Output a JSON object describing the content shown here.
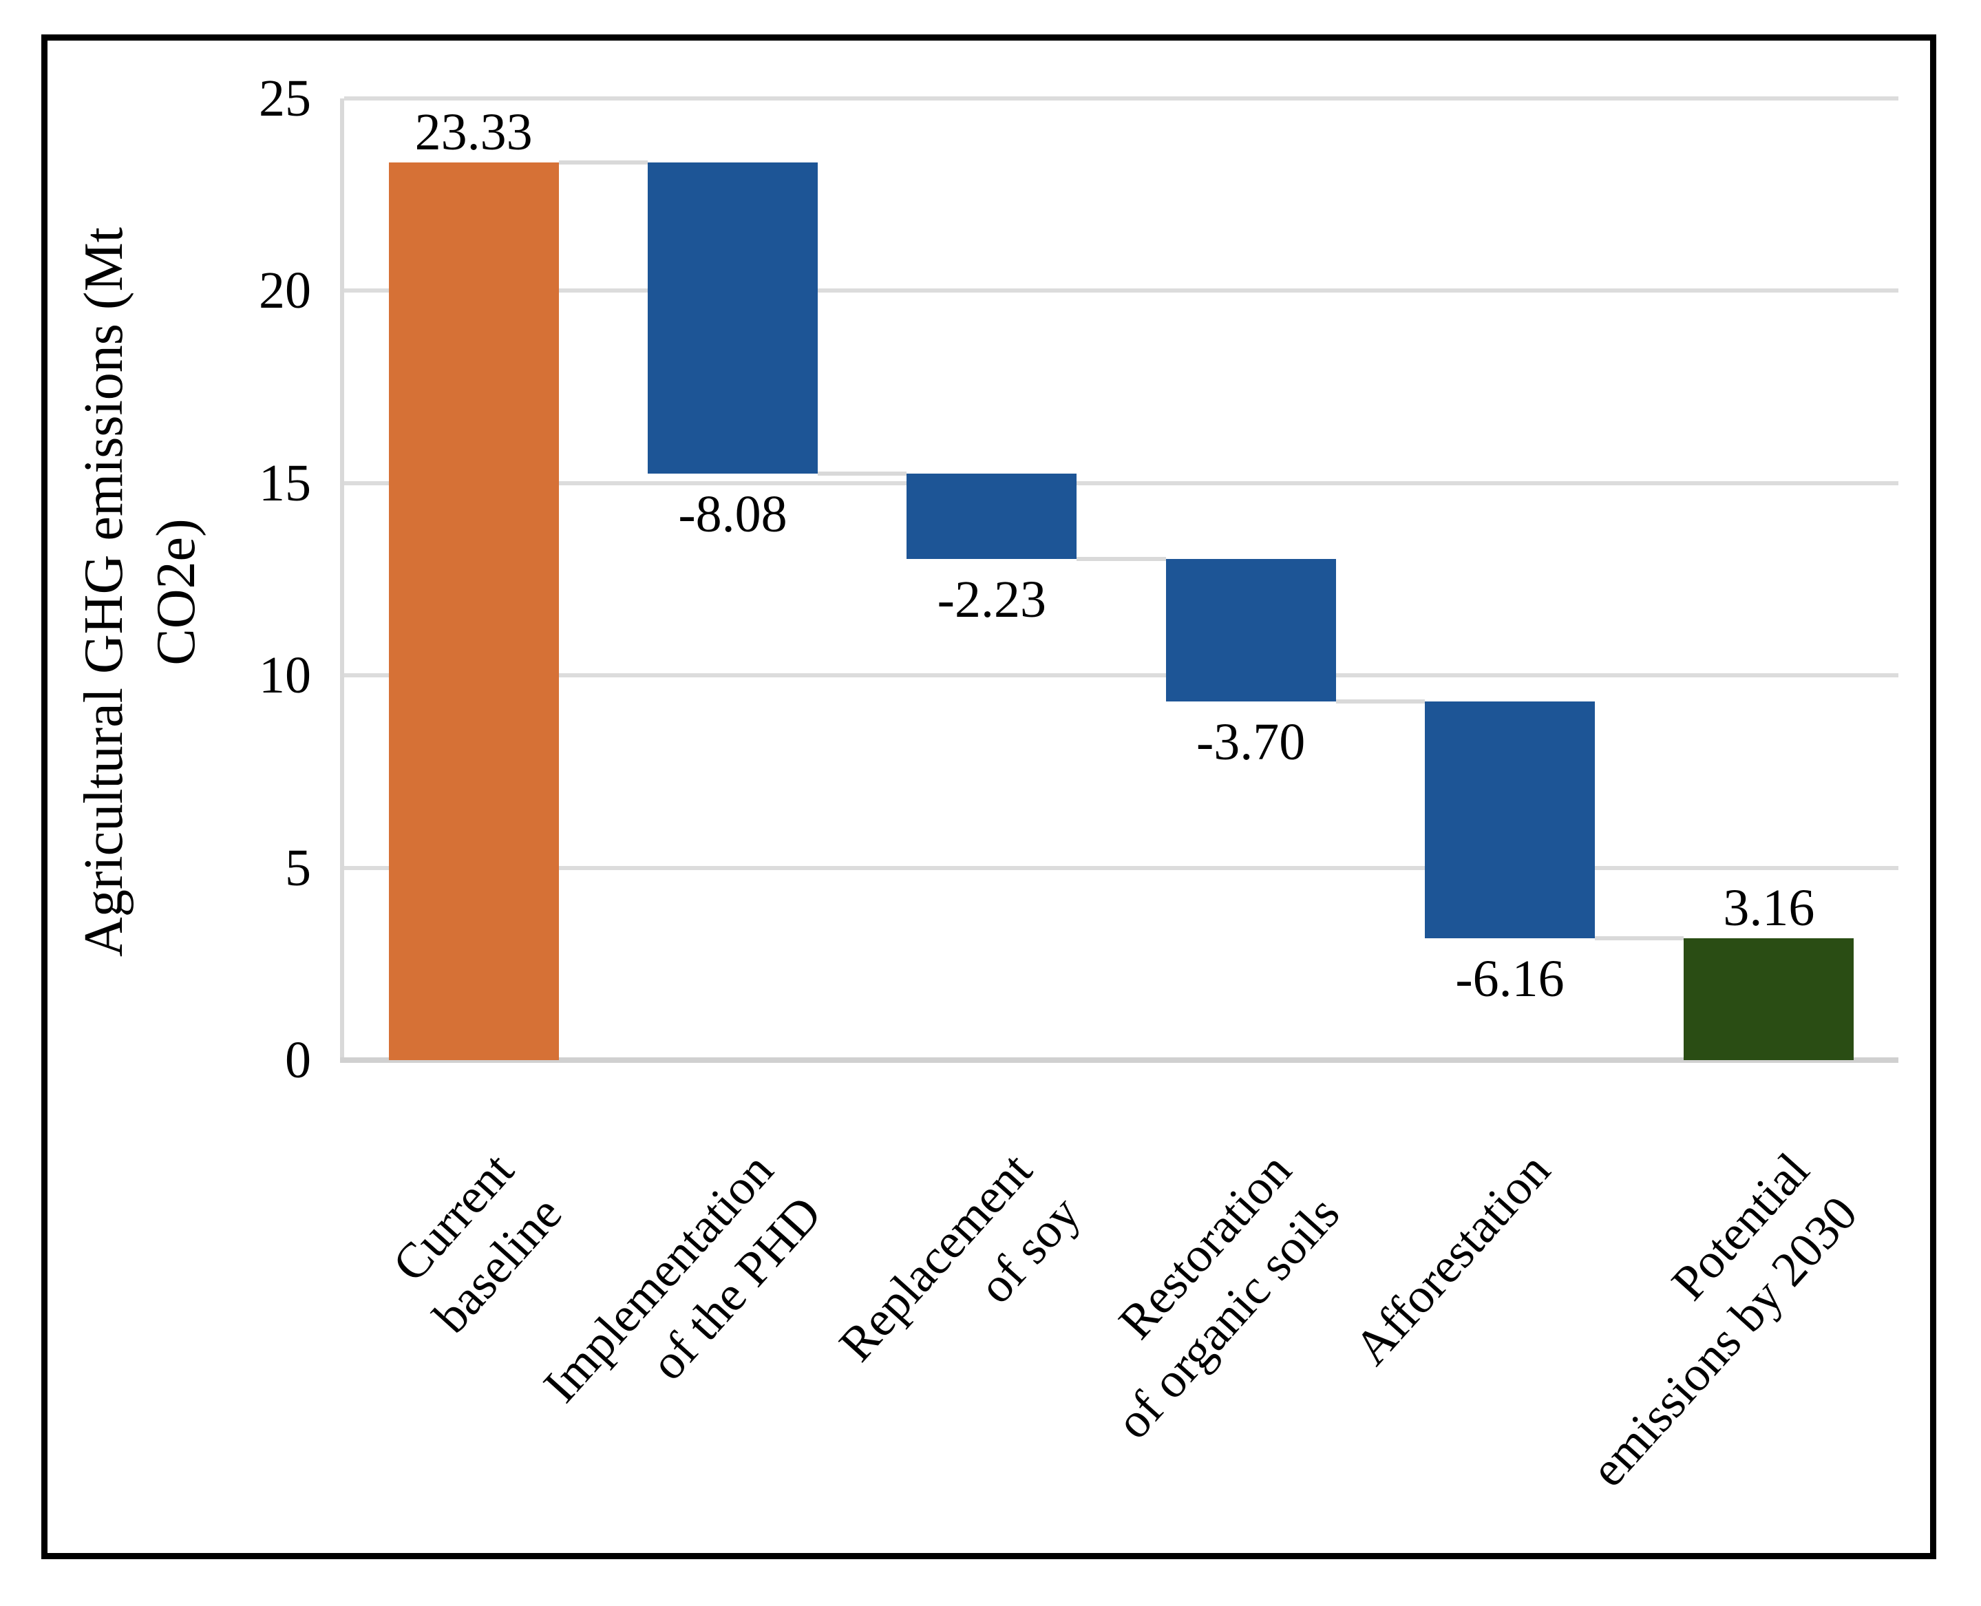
{
  "figure": {
    "y_axis_title_line1": "Agricultural GHG emissions (Mt",
    "y_axis_title_line2": "CO2e)"
  },
  "chart_data": {
    "type": "bar",
    "subtype": "waterfall",
    "title": "",
    "xlabel": "",
    "ylabel": "Agricultural GHG emissions (Mt CO2e)",
    "ylabel_lines": [
      "Agricultural GHG emissions (Mt",
      "CO2e)"
    ],
    "ylim": [
      0,
      25
    ],
    "yticks": [
      0,
      5,
      10,
      15,
      20,
      25
    ],
    "ytick_labels": [
      "0",
      "5",
      "10",
      "15",
      "20",
      "25"
    ],
    "grid": "horizontal",
    "legend": "none",
    "categories": [
      "Current baseline",
      "Implementation of the PHD",
      "Replacement of soy",
      "Restoration of organic soils",
      "Afforestation",
      "Potential emissions by 2030"
    ],
    "category_label_lines": [
      [
        "Current",
        "baseline"
      ],
      [
        "Implementation",
        "of the PHD"
      ],
      [
        "Replacement",
        "of soy"
      ],
      [
        "Restoration",
        "of organic soils"
      ],
      [
        "Afforestation"
      ],
      [
        "Potential",
        "emissions by 2030"
      ]
    ],
    "bars": [
      {
        "category": "Current baseline",
        "value": 23.33,
        "label": "23.33",
        "kind": "absolute",
        "color": "#D67136",
        "label_side": "above"
      },
      {
        "category": "Implementation of the PHD",
        "value": -8.08,
        "label": "-8.08",
        "kind": "delta",
        "color": "#1D5596",
        "label_side": "below"
      },
      {
        "category": "Replacement of soy",
        "value": -2.23,
        "label": "-2.23",
        "kind": "delta",
        "color": "#1D5596",
        "label_side": "below"
      },
      {
        "category": "Restoration of organic soils",
        "value": -3.7,
        "label": "-3.70",
        "kind": "delta",
        "color": "#1D5596",
        "label_side": "below"
      },
      {
        "category": "Afforestation",
        "value": -6.16,
        "label": "-6.16",
        "kind": "delta",
        "color": "#1D5596",
        "label_side": "below"
      },
      {
        "category": "Potential emissions by 2030",
        "value": 3.16,
        "label": "3.16",
        "kind": "total",
        "color": "#2A4D14",
        "label_side": "above"
      }
    ],
    "cumulative_levels": [
      23.33,
      15.25,
      13.02,
      9.32,
      3.16,
      3.16
    ],
    "colors": {
      "start_bar": "#D67136",
      "decrease_bar": "#1D5596",
      "final_bar": "#2A4D14",
      "gridline": "#DCDCDC",
      "axis_line": "#D0D0D0",
      "connector": "#D9D9D9"
    }
  }
}
